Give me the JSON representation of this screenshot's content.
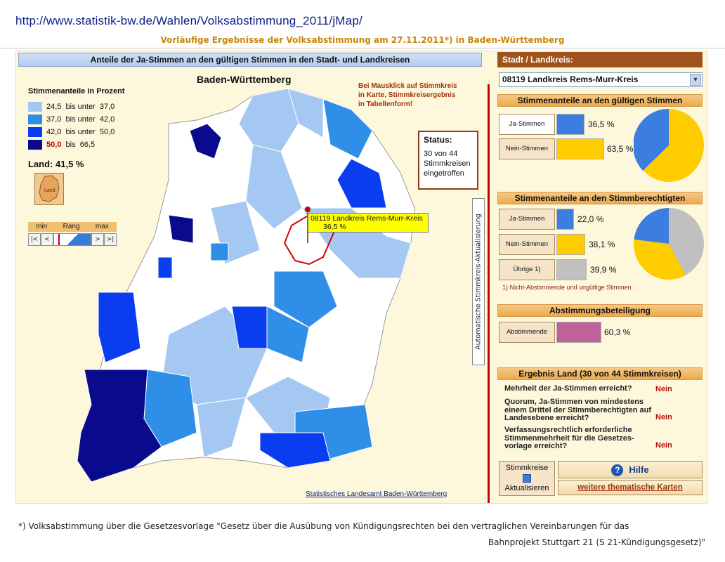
{
  "url": "http://www.statistik-bw.de/Wahlen/Volksabstimmung_2011/jMap/",
  "subtitle": "Vorläufige Ergebnisse der Volksabstimmung am 27.11.2011*) in Baden-Württemberg",
  "map": {
    "header": "Anteile der Ja-Stimmen an den gültigen Stimmen in den Stadt- und Landkreisen",
    "title": "Baden-Württemberg",
    "legend_title": "Stimmenanteile in Prozent",
    "legend": [
      {
        "from": "24,5",
        "to": "37,0",
        "text": "bis unter",
        "color": "#a5c8f2"
      },
      {
        "from": "37,0",
        "to": "42,0",
        "text": "bis unter",
        "color": "#2f8fe8"
      },
      {
        "from": "42,0",
        "to": "50,0",
        "text": "bis unter",
        "color": "#0a3cf0"
      },
      {
        "from": "50,0",
        "to": "66,5",
        "text": "bis",
        "color": "#0a0a8c"
      }
    ],
    "land_label": "Land:",
    "land_value": "41,5 %",
    "land_icon_label": "Land",
    "rang": {
      "min": "min",
      "mid": "Rang",
      "max": "max"
    },
    "nav": [
      "|<",
      "<",
      ">",
      ">|"
    ],
    "hint": "Bei Mausklick auf Stimmkreis in Karte, Stimmkreisergebnis in Tabellenform!",
    "status_title": "Status:",
    "status_lines": [
      "30 von 44",
      "Stimmkreisen",
      "eingetroffen"
    ],
    "auto_label": "Automatische Stimmkreis-Aktualisierung",
    "tooltip_name": "08119 Landkreis Rems-Murr-Kreis",
    "tooltip_value": "36,5 %",
    "credit": "Statistisches Landesamt Baden-Württemberg"
  },
  "right": {
    "header": "Stadt / Landkreis:",
    "selected": "08119 Landkreis Rems-Murr-Kreis",
    "sec1": "Stimmenanteile an den gültigen Stimmen",
    "sec1_rows": [
      {
        "label": "Ja-Stimmen",
        "value": "36,5 %",
        "pct": 36.5,
        "color": "#3c7de0"
      },
      {
        "label": "Nein-Stimmen",
        "value": "63,5 %",
        "pct": 63.5,
        "color": "#ffcc00"
      }
    ],
    "sec2": "Stimmenanteile an den Stimmberechtigten",
    "sec2_rows": [
      {
        "label": "Ja-Stimmen",
        "value": "22,0 %",
        "pct": 22.0,
        "color": "#3c7de0"
      },
      {
        "label": "Nein-Stimmen",
        "value": "38,1 %",
        "pct": 38.1,
        "color": "#ffcc00"
      },
      {
        "label": "Übrige 1)",
        "value": "39,9 %",
        "pct": 39.9,
        "color": "#c0c0c0"
      }
    ],
    "note": "1) Nicht-Abstimmende und ungültige Stimmen",
    "sec3": "Abstimmungsbeteiligung",
    "sec3_row": {
      "label": "Abstimmende",
      "value": "60,3 %",
      "pct": 60.3,
      "color": "#c0619a"
    },
    "sec4": "Ergebnis Land  (30 von 44 Stimmkreisen)",
    "questions": [
      {
        "q": "Mehrheit der Ja-Stimmen erreicht?",
        "a": "Nein"
      },
      {
        "q": "Quorum, Ja-Stimmen von mindestens einem Drittel der Stimmberechtigten auf Landesebene erreicht?",
        "a": "Nein"
      },
      {
        "q": "Verfassungsrechtlich erforderliche Stimmenmehrheit für die Gesetzes-vorlage erreicht?",
        "a": "Nein"
      }
    ],
    "akt_label1": "Stimmkreise",
    "akt_label2": "Aktualisieren",
    "hilfe": "Hilfe",
    "karten": "weitere thematische Karten"
  },
  "footnote1": "*) Volksabstimmung über die Gesetzesvorlage \"Gesetz über die Ausübung von Kündigungsrechten bei den vertraglichen Vereinbarungen für das",
  "footnote2": "Bahnprojekt Stuttgart 21 (S 21-Kündigungsgesetz)\""
}
